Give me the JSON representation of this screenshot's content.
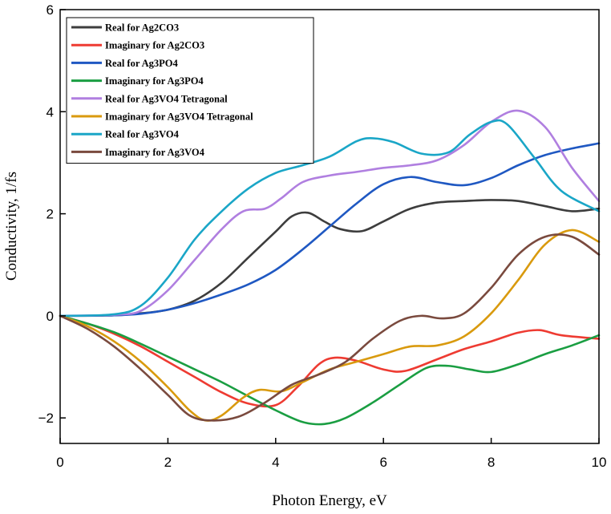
{
  "chart_data": {
    "type": "line",
    "title": "",
    "xlabel": "Photon Energy, eV",
    "ylabel": "Conductivity, 1/fs",
    "xlim": [
      0,
      10
    ],
    "ylim": [
      -2.5,
      6
    ],
    "xticks": [
      0,
      2,
      4,
      6,
      8,
      10
    ],
    "yticks": [
      -2,
      0,
      2,
      4,
      6
    ],
    "xtick_labels": [
      "0",
      "2",
      "4",
      "6",
      "8",
      "10"
    ],
    "ytick_labels": [
      "−2",
      "0",
      "2",
      "4",
      "6"
    ],
    "grid": false,
    "legend_position": "top-left",
    "series": [
      {
        "name": "Real for Ag2CO3",
        "color": "#3d3d3d",
        "points": [
          [
            0,
            0
          ],
          [
            1,
            0.01
          ],
          [
            1.5,
            0.05
          ],
          [
            2,
            0.12
          ],
          [
            2.5,
            0.3
          ],
          [
            3,
            0.65
          ],
          [
            3.5,
            1.15
          ],
          [
            4,
            1.65
          ],
          [
            4.3,
            1.95
          ],
          [
            4.6,
            2.02
          ],
          [
            4.9,
            1.85
          ],
          [
            5.2,
            1.7
          ],
          [
            5.6,
            1.66
          ],
          [
            6,
            1.85
          ],
          [
            6.5,
            2.1
          ],
          [
            7,
            2.22
          ],
          [
            7.5,
            2.25
          ],
          [
            8,
            2.27
          ],
          [
            8.5,
            2.25
          ],
          [
            9,
            2.15
          ],
          [
            9.5,
            2.05
          ],
          [
            10,
            2.1
          ]
        ]
      },
      {
        "name": "Imaginary for Ag2CO3",
        "color": "#ee3b32",
        "points": [
          [
            0,
            0
          ],
          [
            0.5,
            -0.15
          ],
          [
            1,
            -0.35
          ],
          [
            1.5,
            -0.6
          ],
          [
            2,
            -0.9
          ],
          [
            2.5,
            -1.2
          ],
          [
            3,
            -1.5
          ],
          [
            3.5,
            -1.72
          ],
          [
            4,
            -1.75
          ],
          [
            4.4,
            -1.4
          ],
          [
            4.8,
            -0.95
          ],
          [
            5.1,
            -0.82
          ],
          [
            5.5,
            -0.88
          ],
          [
            6,
            -1.05
          ],
          [
            6.4,
            -1.08
          ],
          [
            7,
            -0.85
          ],
          [
            7.5,
            -0.65
          ],
          [
            8,
            -0.5
          ],
          [
            8.5,
            -0.33
          ],
          [
            8.9,
            -0.28
          ],
          [
            9.3,
            -0.38
          ],
          [
            10,
            -0.45
          ]
        ]
      },
      {
        "name": "Real for Ag3PO4",
        "color": "#1f58c2",
        "points": [
          [
            0,
            0
          ],
          [
            1,
            0.01
          ],
          [
            1.5,
            0.04
          ],
          [
            2,
            0.12
          ],
          [
            2.5,
            0.25
          ],
          [
            3,
            0.42
          ],
          [
            3.5,
            0.62
          ],
          [
            4,
            0.9
          ],
          [
            4.5,
            1.3
          ],
          [
            5,
            1.75
          ],
          [
            5.5,
            2.2
          ],
          [
            6,
            2.58
          ],
          [
            6.5,
            2.72
          ],
          [
            7,
            2.62
          ],
          [
            7.5,
            2.56
          ],
          [
            8,
            2.7
          ],
          [
            8.5,
            2.95
          ],
          [
            9,
            3.15
          ],
          [
            9.5,
            3.28
          ],
          [
            10,
            3.38
          ]
        ]
      },
      {
        "name": "Imaginary for Ag3PO4",
        "color": "#1a9e42",
        "points": [
          [
            0,
            0
          ],
          [
            0.5,
            -0.15
          ],
          [
            1,
            -0.32
          ],
          [
            1.5,
            -0.55
          ],
          [
            2,
            -0.8
          ],
          [
            2.5,
            -1.05
          ],
          [
            3,
            -1.3
          ],
          [
            3.5,
            -1.58
          ],
          [
            4,
            -1.85
          ],
          [
            4.5,
            -2.08
          ],
          [
            4.9,
            -2.12
          ],
          [
            5.3,
            -2.0
          ],
          [
            5.8,
            -1.7
          ],
          [
            6.3,
            -1.35
          ],
          [
            6.8,
            -1.02
          ],
          [
            7.2,
            -0.98
          ],
          [
            7.6,
            -1.05
          ],
          [
            8,
            -1.1
          ],
          [
            8.5,
            -0.95
          ],
          [
            9,
            -0.75
          ],
          [
            9.5,
            -0.58
          ],
          [
            10,
            -0.38
          ]
        ]
      },
      {
        "name": "Real for Ag3VO4 Tetragonal",
        "color": "#b07fe0",
        "points": [
          [
            0,
            0
          ],
          [
            1,
            0.02
          ],
          [
            1.5,
            0.1
          ],
          [
            2,
            0.5
          ],
          [
            2.5,
            1.1
          ],
          [
            3,
            1.7
          ],
          [
            3.4,
            2.05
          ],
          [
            3.8,
            2.1
          ],
          [
            4.1,
            2.3
          ],
          [
            4.5,
            2.62
          ],
          [
            5,
            2.75
          ],
          [
            5.5,
            2.82
          ],
          [
            6,
            2.9
          ],
          [
            6.5,
            2.95
          ],
          [
            7,
            3.05
          ],
          [
            7.5,
            3.35
          ],
          [
            8,
            3.8
          ],
          [
            8.5,
            4.02
          ],
          [
            9,
            3.7
          ],
          [
            9.5,
            2.9
          ],
          [
            10,
            2.25
          ]
        ]
      },
      {
        "name": "Imaginary for Ag3VO4 Tetragonal",
        "color": "#d99a0e",
        "points": [
          [
            0,
            0
          ],
          [
            0.5,
            -0.2
          ],
          [
            1,
            -0.5
          ],
          [
            1.5,
            -0.9
          ],
          [
            2,
            -1.4
          ],
          [
            2.4,
            -1.85
          ],
          [
            2.7,
            -2.05
          ],
          [
            3,
            -1.95
          ],
          [
            3.4,
            -1.6
          ],
          [
            3.7,
            -1.45
          ],
          [
            4.1,
            -1.48
          ],
          [
            4.5,
            -1.3
          ],
          [
            5,
            -1.05
          ],
          [
            5.5,
            -0.9
          ],
          [
            6,
            -0.75
          ],
          [
            6.5,
            -0.6
          ],
          [
            7,
            -0.58
          ],
          [
            7.5,
            -0.4
          ],
          [
            8,
            0.05
          ],
          [
            8.5,
            0.7
          ],
          [
            9,
            1.4
          ],
          [
            9.5,
            1.68
          ],
          [
            10,
            1.45
          ]
        ]
      },
      {
        "name": "Real for Ag3VO4",
        "color": "#1aa6c7",
        "points": [
          [
            0,
            0
          ],
          [
            1,
            0.03
          ],
          [
            1.5,
            0.2
          ],
          [
            2,
            0.75
          ],
          [
            2.5,
            1.5
          ],
          [
            3,
            2.05
          ],
          [
            3.5,
            2.5
          ],
          [
            4,
            2.8
          ],
          [
            4.5,
            2.95
          ],
          [
            5,
            3.12
          ],
          [
            5.5,
            3.42
          ],
          [
            5.8,
            3.48
          ],
          [
            6.2,
            3.4
          ],
          [
            6.7,
            3.18
          ],
          [
            7.2,
            3.2
          ],
          [
            7.6,
            3.55
          ],
          [
            8,
            3.8
          ],
          [
            8.3,
            3.75
          ],
          [
            8.8,
            3.1
          ],
          [
            9.3,
            2.45
          ],
          [
            10,
            2.05
          ]
        ]
      },
      {
        "name": "Imaginary for Ag3VO4",
        "color": "#7a4a3e",
        "points": [
          [
            0,
            0
          ],
          [
            0.5,
            -0.25
          ],
          [
            1,
            -0.6
          ],
          [
            1.5,
            -1.05
          ],
          [
            2,
            -1.55
          ],
          [
            2.4,
            -1.95
          ],
          [
            2.8,
            -2.05
          ],
          [
            3.3,
            -1.98
          ],
          [
            3.8,
            -1.7
          ],
          [
            4.3,
            -1.35
          ],
          [
            4.8,
            -1.15
          ],
          [
            5.3,
            -0.9
          ],
          [
            5.8,
            -0.45
          ],
          [
            6.3,
            -0.1
          ],
          [
            6.7,
            0.0
          ],
          [
            7.1,
            -0.05
          ],
          [
            7.5,
            0.05
          ],
          [
            8,
            0.55
          ],
          [
            8.5,
            1.2
          ],
          [
            9,
            1.55
          ],
          [
            9.5,
            1.55
          ],
          [
            10,
            1.2
          ]
        ]
      }
    ]
  }
}
